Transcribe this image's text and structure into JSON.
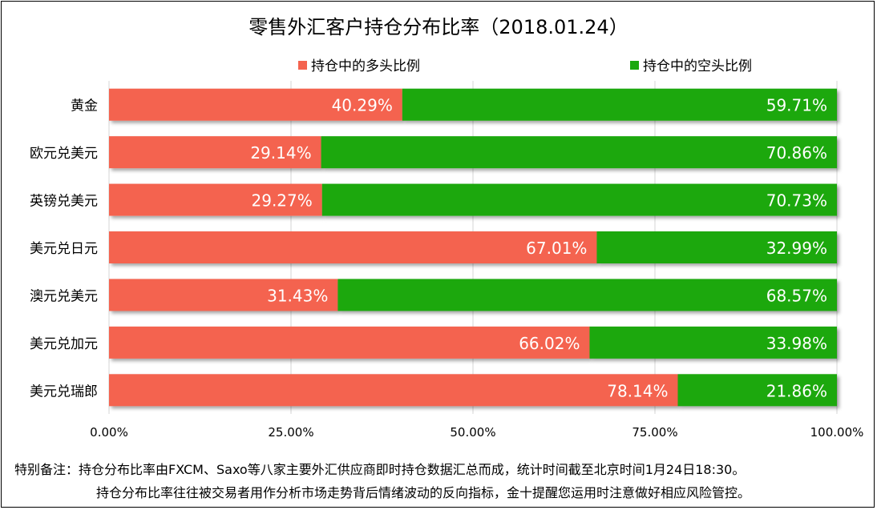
{
  "chart_data": {
    "type": "bar",
    "orientation": "horizontal",
    "stacked": true,
    "title": "零售外汇客户持仓分布比率（2018.01.24）",
    "categories": [
      "黄金",
      "欧元兑美元",
      "英镑兑美元",
      "美元兑日元",
      "澳元兑美元",
      "美元兑加元",
      "美元兑瑞郎"
    ],
    "series": [
      {
        "name": "持仓中的多头比例",
        "color": "#f4634f",
        "values": [
          40.29,
          29.14,
          29.27,
          67.01,
          31.43,
          66.02,
          78.14
        ],
        "labels": [
          "40.29%",
          "29.14%",
          "29.27%",
          "67.01%",
          "31.43%",
          "66.02%",
          "78.14%"
        ]
      },
      {
        "name": "持仓中的空头比例",
        "color": "#1aa80e",
        "values": [
          59.71,
          70.86,
          70.73,
          32.99,
          68.57,
          33.98,
          21.86
        ],
        "labels": [
          "59.71%",
          "70.86%",
          "70.73%",
          "32.99%",
          "68.57%",
          "33.98%",
          "21.86%"
        ]
      }
    ],
    "xlim": [
      0,
      100
    ],
    "xticks": [
      0,
      25,
      50,
      75,
      100
    ],
    "xtick_labels": [
      "0.00%",
      "25.00%",
      "50.00%",
      "75.00%",
      "100.00%"
    ],
    "grid": true,
    "legend": "top"
  },
  "notes": {
    "line1": "特别备注：持仓分布比率由FXCM、Saxo等八家主要外汇供应商即时持仓数据汇总而成，统计时间截至北京时间1月24日18:30。",
    "line2": "持仓分布比率往往被交易者用作分析市场走势背后情绪波动的反向指标，金十提醒您运用时注意做好相应风险管控。"
  }
}
